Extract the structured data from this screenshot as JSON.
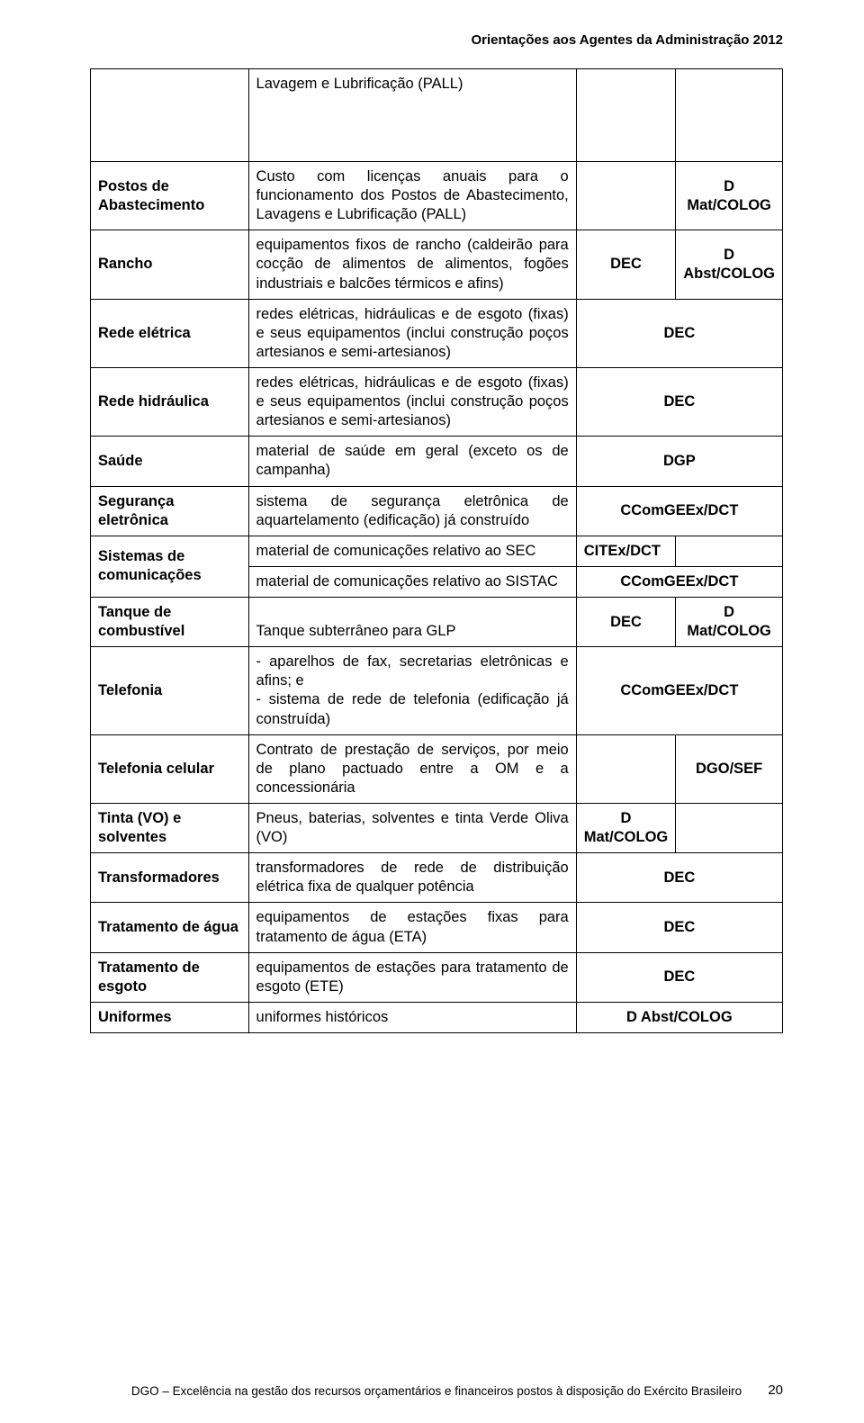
{
  "header": {
    "title": "Orientações aos Agentes da Administração 2012"
  },
  "footer": {
    "text": "DGO – Excelência na gestão dos recursos orçamentários e financeiros postos à disposição do Exército Brasileiro",
    "page_number": "20"
  },
  "rows": {
    "r0": {
      "col2": "Lavagem e Lubrificação (PALL)"
    },
    "r1": {
      "col1": "Postos de Abastecimento",
      "col2": "Custo com licenças anuais para o funcionamento dos Postos de Abastecimento, Lavagens e Lubrificação (PALL)",
      "col4": "D Mat/COLOG"
    },
    "r2": {
      "col1": "Rancho",
      "col2": "equipamentos fixos de rancho (caldeirão para cocção de alimentos de alimentos, fogões industriais e balcões térmicos e afins)",
      "col3": "DEC",
      "col4": "D Abst/COLOG"
    },
    "r3": {
      "col1": "Rede elétrica",
      "col2": "redes elétricas, hidráulicas e de esgoto (fixas) e seus equipamentos (inclui construção poços artesianos e semi-artesianos)",
      "merged": "DEC"
    },
    "r4": {
      "col1": "Rede hidráulica",
      "col2": "redes elétricas, hidráulicas e de esgoto (fixas) e seus equipamentos (inclui construção poços artesianos e semi-artesianos)",
      "merged": "DEC"
    },
    "r5": {
      "col1": "Saúde",
      "col2": "material de saúde em geral (exceto os de campanha)",
      "merged": "DGP"
    },
    "r6": {
      "col1": "Segurança eletrônica",
      "col2": "sistema de segurança eletrônica de aquartelamento (edificação) já construído",
      "merged": "CComGEEx/DCT"
    },
    "r7": {
      "col1": "Sistemas de comunicações",
      "col2a": "material de comunicações relativo ao SEC",
      "col3a": "CITEx/DCT",
      "col2b": "material de comunicações relativo ao SISTAC",
      "mergedb": "CComGEEx/DCT"
    },
    "r8": {
      "col1": "Tanque de combustível",
      "col2": "Tanque subterrâneo para GLP",
      "col3": "DEC",
      "col4": "D Mat/COLOG"
    },
    "r9": {
      "col1": "Telefonia",
      "col2": "- aparelhos de fax, secretarias eletrônicas e afins; e\n- sistema de rede de telefonia (edificação já construída)",
      "merged": "CComGEEx/DCT"
    },
    "r10": {
      "col1": "Telefonia celular",
      "col2": "Contrato de prestação de serviços, por meio de plano pactuado entre a OM e a concessionária",
      "col4": "DGO/SEF"
    },
    "r11": {
      "col1": "Tinta (VO) e solventes",
      "col2": "Pneus, baterias, solventes e tinta Verde Oliva (VO)",
      "col3": "D Mat/COLOG"
    },
    "r12": {
      "col1": "Transformadores",
      "col2": "transformadores de rede de distribuição elétrica fixa de qualquer potência",
      "merged": "DEC"
    },
    "r13": {
      "col1": "Tratamento de água",
      "col2": "equipamentos de estações fixas para tratamento de água (ETA)",
      "merged": "DEC"
    },
    "r14": {
      "col1": "Tratamento de esgoto",
      "col2": "equipamentos de estações para tratamento de esgoto (ETE)",
      "merged": "DEC"
    },
    "r15": {
      "col1": "Uniformes",
      "col2": "uniformes históricos",
      "merged": "D Abst/COLOG"
    }
  }
}
